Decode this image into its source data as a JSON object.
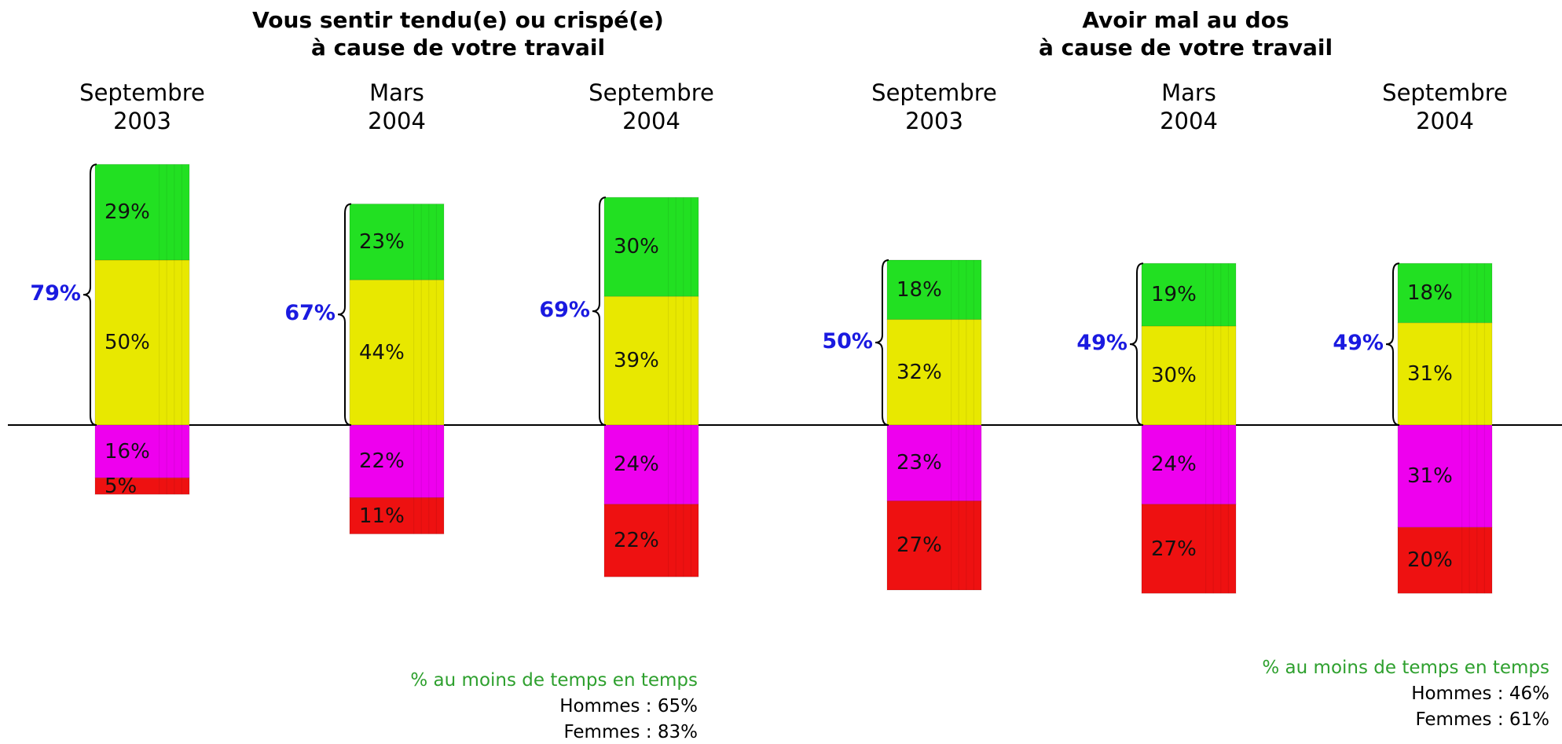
{
  "chart_data": [
    {
      "type": "bar",
      "title": "Vous sentir tendu(e) ou crispé(e)\nà cause de votre travail",
      "categories": [
        "Septembre\n2003",
        "Mars\n2004",
        "Septembre\n2004"
      ],
      "series": [
        {
          "color": "#e8e800",
          "stack": "above",
          "values": [
            50,
            44,
            39
          ],
          "value_labels": [
            "50%",
            "44%",
            "39%"
          ]
        },
        {
          "color": "#22e022",
          "stack": "above",
          "values": [
            29,
            23,
            30
          ],
          "value_labels": [
            "29%",
            "23%",
            "30%"
          ]
        },
        {
          "color": "#ee00ee",
          "stack": "below",
          "values": [
            16,
            22,
            24
          ],
          "value_labels": [
            "16%",
            "22%",
            "24%"
          ]
        },
        {
          "color": "#ee1111",
          "stack": "below",
          "values": [
            5,
            11,
            22
          ],
          "value_labels": [
            "5%",
            "11%",
            "22%"
          ]
        }
      ],
      "brackets": {
        "color": "#1a1ae0",
        "values": [
          79,
          67,
          69
        ],
        "value_labels": [
          "79%",
          "67%",
          "69%"
        ]
      },
      "note": {
        "title": "% au moins de temps en temps",
        "title_color": "#2ea02e",
        "lines": [
          "Hommes : 65%",
          "Femmes : 83%"
        ]
      }
    },
    {
      "type": "bar",
      "title": "Avoir mal au dos\nà cause de votre travail",
      "categories": [
        "Septembre\n2003",
        "Mars\n2004",
        "Septembre\n2004"
      ],
      "series": [
        {
          "color": "#e8e800",
          "stack": "above",
          "values": [
            32,
            30,
            31
          ],
          "value_labels": [
            "32%",
            "30%",
            "31%"
          ]
        },
        {
          "color": "#22e022",
          "stack": "above",
          "values": [
            18,
            19,
            18
          ],
          "value_labels": [
            "18%",
            "19%",
            "18%"
          ]
        },
        {
          "color": "#ee00ee",
          "stack": "below",
          "values": [
            23,
            24,
            31
          ],
          "value_labels": [
            "23%",
            "24%",
            "31%"
          ]
        },
        {
          "color": "#ee1111",
          "stack": "below",
          "values": [
            27,
            27,
            20
          ],
          "value_labels": [
            "27%",
            "27%",
            "20%"
          ]
        }
      ],
      "brackets": {
        "color": "#1a1ae0",
        "values": [
          50,
          49,
          49
        ],
        "value_labels": [
          "50%",
          "49%",
          "49%"
        ]
      },
      "note": {
        "title": "% au moins de temps en temps",
        "title_color": "#2ea02e",
        "lines": [
          "Hommes : 46%",
          "Femmes : 61%"
        ]
      }
    }
  ]
}
